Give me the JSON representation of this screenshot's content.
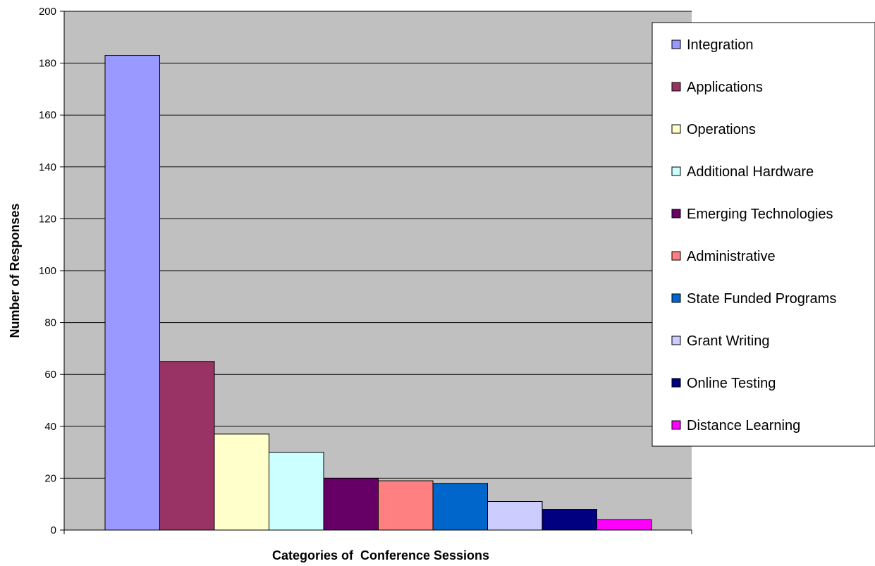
{
  "chart_data": {
    "type": "bar",
    "title": "",
    "xlabel": "Categories of  Conference Sessions",
    "ylabel": "Number of Responses",
    "ylim": [
      0,
      200
    ],
    "yticks": [
      0,
      20,
      40,
      60,
      80,
      100,
      120,
      140,
      160,
      180,
      200
    ],
    "grid": true,
    "legend_position": "right",
    "plot_background": "#c0c0c0",
    "series": [
      {
        "name": "Integration",
        "value": 183,
        "color": "#9999ff"
      },
      {
        "name": "Applications",
        "value": 65,
        "color": "#993366"
      },
      {
        "name": "Operations",
        "value": 37,
        "color": "#ffffcc"
      },
      {
        "name": "Additional Hardware",
        "value": 30,
        "color": "#ccffff"
      },
      {
        "name": "Emerging Technologies",
        "value": 20,
        "color": "#660066"
      },
      {
        "name": "Administrative",
        "value": 19,
        "color": "#ff8080"
      },
      {
        "name": "State Funded Programs",
        "value": 18,
        "color": "#0066cc"
      },
      {
        "name": "Grant Writing",
        "value": 11,
        "color": "#ccccff"
      },
      {
        "name": "Online Testing",
        "value": 8,
        "color": "#000080"
      },
      {
        "name": "Distance Learning",
        "value": 4,
        "color": "#ff00ff"
      }
    ]
  }
}
